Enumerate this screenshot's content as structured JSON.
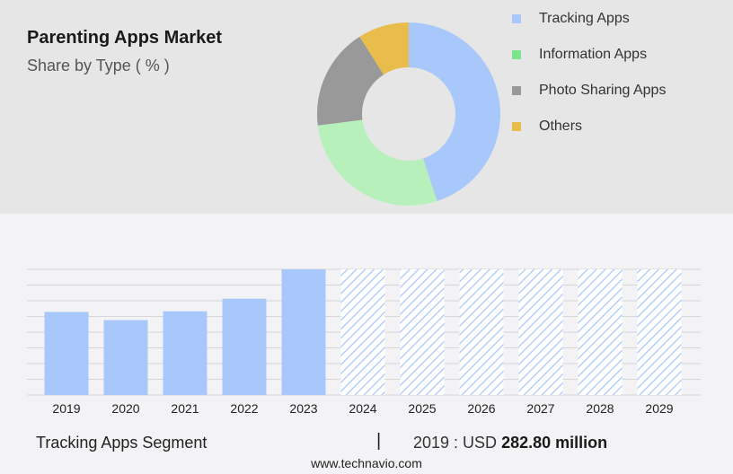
{
  "header": {
    "title": "Parenting Apps Market",
    "subtitle": "Share by Type ( % )"
  },
  "chart_data": [
    {
      "type": "pie",
      "variant": "donut",
      "legend_position": "right",
      "categories": [
        "Tracking Apps",
        "Information Apps",
        "Photo Sharing Apps",
        "Others"
      ],
      "values": [
        45,
        28,
        18,
        9
      ],
      "colors": [
        "#a8c7fa",
        "#b8f0bc",
        "#999999",
        "#e8bd4c"
      ],
      "legend_swatch_colors": [
        "#a8c7fa",
        "#7be58d",
        "#999999",
        "#e8bd4c"
      ]
    },
    {
      "type": "bar",
      "categories": [
        "2019",
        "2020",
        "2021",
        "2022",
        "2023",
        "2024",
        "2025",
        "2026",
        "2027",
        "2028",
        "2029"
      ],
      "values": [
        282.8,
        255,
        285,
        328,
        428,
        428,
        428,
        428,
        428,
        428,
        428
      ],
      "forecast_start_index": 5,
      "ylim": [
        0,
        428
      ],
      "grid": true,
      "bar_color": "#a8c7fa",
      "forecast_pattern": "diagonal-hatch"
    }
  ],
  "footer": {
    "segment_label": "Tracking Apps Segment",
    "divider": "|",
    "value_prefix": "2019 : USD",
    "value_amount": "282.80 million",
    "source": "www.technavio.com"
  }
}
